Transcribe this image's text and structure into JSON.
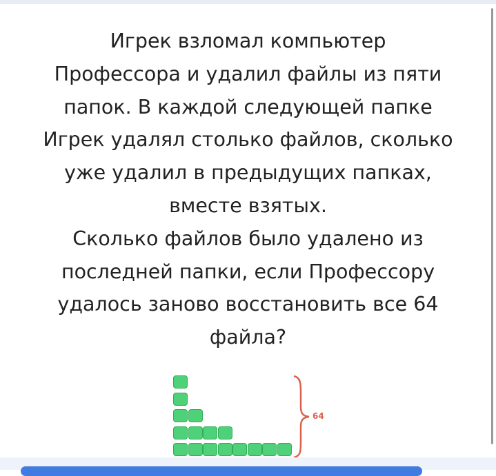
{
  "problem": {
    "lines": [
      "Игрек взломал компьютер",
      "Профессора и удалил файлы из пяти",
      "папок. В каждой следующей папке",
      "Игрек удалял столько файлов, сколько",
      "уже удалил в предыдущих папках,",
      "вместе взятых.",
      "Сколько файлов было удалено из",
      "последней папки, если Профессору",
      "удалось заново восстановить все 64",
      "файла?"
    ]
  },
  "diagram": {
    "rows": [
      1,
      1,
      2,
      4,
      8
    ],
    "total_label": "64",
    "block_color": "#4fd17a",
    "brace_color": "#d9634a"
  }
}
